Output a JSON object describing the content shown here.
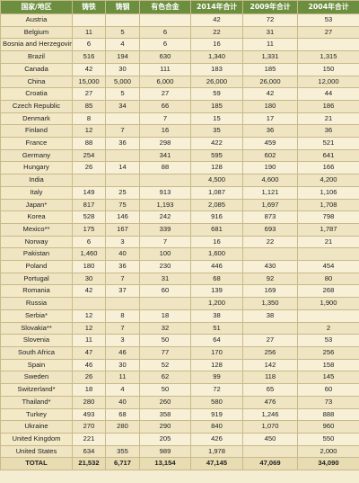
{
  "table": {
    "header": [
      "国家/地区",
      "铸铁",
      "铸钢",
      "有色合金",
      "2014年合计",
      "2009年合计",
      "2004年合计"
    ],
    "rows": [
      [
        "Austria",
        null,
        null,
        null,
        "42",
        "72",
        "53"
      ],
      [
        "Belgium",
        "11",
        "5",
        "6",
        "22",
        "31",
        "27"
      ],
      [
        "Bosnia and Herzegovina",
        "6",
        "4",
        "6",
        "16",
        "11",
        null
      ],
      [
        "Brazil",
        "516",
        "194",
        "630",
        "1,340",
        "1,331",
        "1,315"
      ],
      [
        "Canada",
        "42",
        "30",
        "111",
        "183",
        "185",
        "150"
      ],
      [
        "China",
        "15,000",
        "5,000",
        "6,000",
        "26,000",
        "26,000",
        "12,000"
      ],
      [
        "Croatia",
        "27",
        "5",
        "27",
        "59",
        "42",
        "44"
      ],
      [
        "Czech Republic",
        "85",
        "34",
        "66",
        "185",
        "180",
        "186"
      ],
      [
        "Denmark",
        "8",
        null,
        "7",
        "15",
        "17",
        "21"
      ],
      [
        "Finland",
        "12",
        "7",
        "16",
        "35",
        "36",
        "36"
      ],
      [
        "France",
        "88",
        "36",
        "298",
        "422",
        "459",
        "521"
      ],
      [
        "Germany",
        "254",
        null,
        "341",
        "595",
        "602",
        "641"
      ],
      [
        "Hungary",
        "26",
        "14",
        "88",
        "128",
        "190",
        "166"
      ],
      [
        "India",
        null,
        null,
        null,
        "4,500",
        "4,600",
        "4,200"
      ],
      [
        "Italy",
        "149",
        "25",
        "913",
        "1,087",
        "1,121",
        "1,106"
      ],
      [
        "Japan*",
        "817",
        "75",
        "1,193",
        "2,085",
        "1,697",
        "1,708"
      ],
      [
        "Korea",
        "528",
        "146",
        "242",
        "916",
        "873",
        "798"
      ],
      [
        "Mexico**",
        "175",
        "167",
        "339",
        "681",
        "693",
        "1,787"
      ],
      [
        "Norway",
        "6",
        "3",
        "7",
        "16",
        "22",
        "21"
      ],
      [
        "Pakistan",
        "1,460",
        "40",
        "100",
        "1,600",
        null,
        null
      ],
      [
        "Poland",
        "180",
        "36",
        "230",
        "446",
        "430",
        "454"
      ],
      [
        "Portugal",
        "30",
        "7",
        "31",
        "68",
        "92",
        "80"
      ],
      [
        "Romania",
        "42",
        "37",
        "60",
        "139",
        "169",
        "268"
      ],
      [
        "Russia",
        null,
        null,
        null,
        "1,200",
        "1,350",
        "1,900"
      ],
      [
        "Serbia*",
        "12",
        "8",
        "18",
        "38",
        "38",
        null
      ],
      [
        "Slovakia**",
        "12",
        "7",
        "32",
        "51",
        null,
        "2"
      ],
      [
        "Slovenia",
        "11",
        "3",
        "50",
        "64",
        "27",
        "53"
      ],
      [
        "South Africa",
        "47",
        "46",
        "77",
        "170",
        "256",
        "256"
      ],
      [
        "Spain",
        "46",
        "30",
        "52",
        "128",
        "142",
        "158"
      ],
      [
        "Sweden",
        "26",
        "11",
        "62",
        "99",
        "118",
        "145"
      ],
      [
        "Switzerland*",
        "18",
        "4",
        "50",
        "72",
        "65",
        "60"
      ],
      [
        "Thailand*",
        "280",
        "40",
        "260",
        "580",
        "476",
        "73"
      ],
      [
        "Turkey",
        "493",
        "68",
        "358",
        "919",
        "1,246",
        "888"
      ],
      [
        "Ukraine",
        "270",
        "280",
        "290",
        "840",
        "1,070",
        "960"
      ],
      [
        "United Kingdom",
        "221",
        null,
        "205",
        "426",
        "450",
        "550"
      ],
      [
        "United States",
        "634",
        "355",
        "989",
        "1,978",
        null,
        "2,000"
      ],
      [
        "TOTAL",
        "21,532",
        "6,717",
        "13,154",
        "47,145",
        "47,069",
        "34,090"
      ]
    ]
  }
}
